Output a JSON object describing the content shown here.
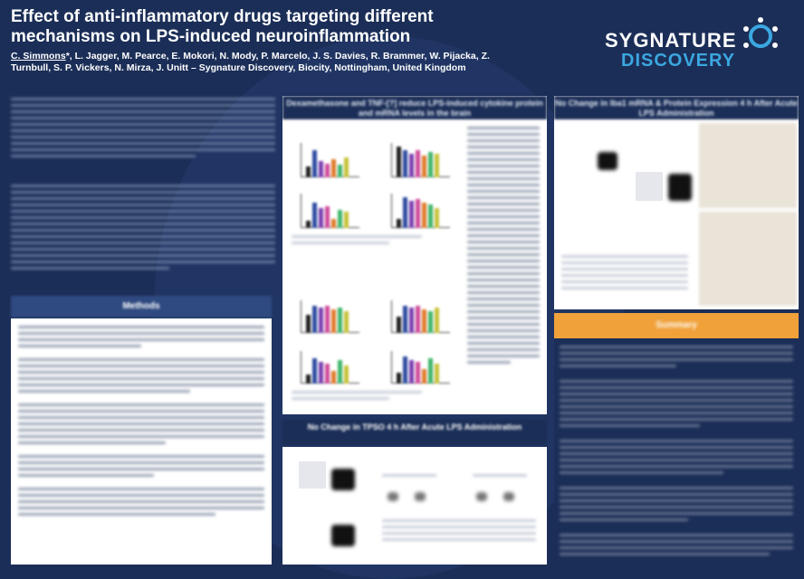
{
  "poster": {
    "title_line1": "Effect of anti-inflammatory drugs targeting different",
    "title_line2": "mechanisms on LPS-induced neuroinflammation",
    "author_presenting": "C. Simmons",
    "authors_rest": "*, L. Jagger, M. Pearce, E. Mokori, N. Mody, P. Marcelo, J. S. Davies, R. Brammer, W. Pijacka, Z. Turnbull, S. P. Vickers, N. Mirza, J. Unitt – Sygnature Discovery, Biocity, Nottingham, United Kingdom"
  },
  "logo": {
    "line1": "SYGNATURE",
    "line2": "DISCOVERY",
    "icon": "ring-dots-logo-icon",
    "color_primary": "#ffffff",
    "color_accent": "#3ba7e0"
  },
  "sections": {
    "methods": "Methods",
    "dex_heading": "Dexamethasone and TNF-[?] reduce LPS-induced cytokine protein and mRNA levels in the brain",
    "iba1_heading": "No Change in Iba1 mRNA & Protein Expression 4 h After Acute LPS Administration",
    "tspo_heading": "No Change in TPSO 4 h After Acute LPS Administration",
    "summary": "Summary"
  },
  "colors": {
    "background": "#1b2e57",
    "panel": "#ffffff",
    "summary_bar": "#f0a13a",
    "bar_series": [
      "#1f1f1f",
      "#2c4aa0",
      "#7a3fb0",
      "#d04a9a",
      "#e07a2a",
      "#3fb56a",
      "#c8c23a"
    ]
  }
}
